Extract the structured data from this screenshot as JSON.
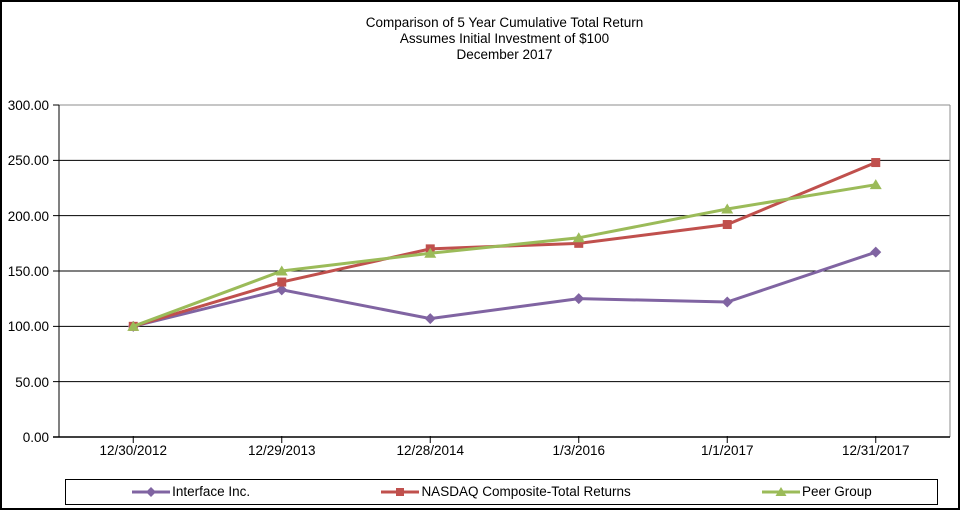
{
  "title": {
    "line1": "Comparison of 5 Year Cumulative Total Return",
    "line2": "Assumes Initial Investment of $100",
    "line3": "December 2017"
  },
  "chart_data": {
    "type": "line",
    "categories": [
      "12/30/2012",
      "12/29/2013",
      "12/28/2014",
      "1/3/2016",
      "1/1/2017",
      "12/31/2017"
    ],
    "series": [
      {
        "name": "Interface Inc.",
        "color": "#8064A2",
        "marker": "diamond",
        "values": [
          100,
          133,
          107,
          125,
          122,
          167
        ]
      },
      {
        "name": "NASDAQ Composite-Total Returns",
        "color": "#C0504D",
        "marker": "square",
        "values": [
          100,
          140,
          170,
          175,
          192,
          248
        ]
      },
      {
        "name": "Peer Group",
        "color": "#9BBB59",
        "marker": "triangle",
        "values": [
          100,
          150,
          166,
          180,
          206,
          228
        ]
      }
    ],
    "ylim": [
      0,
      300
    ],
    "ytick_step": 50,
    "ytick_labels": [
      "0.00",
      "50.00",
      "100.00",
      "150.00",
      "200.00",
      "250.00",
      "300.00"
    ],
    "grid": true,
    "legend_position": "bottom",
    "colors": {
      "gridline": "#000000",
      "axis": "#000000",
      "plot_border": "#8C8C8C",
      "background": "#FFFFFF"
    }
  }
}
